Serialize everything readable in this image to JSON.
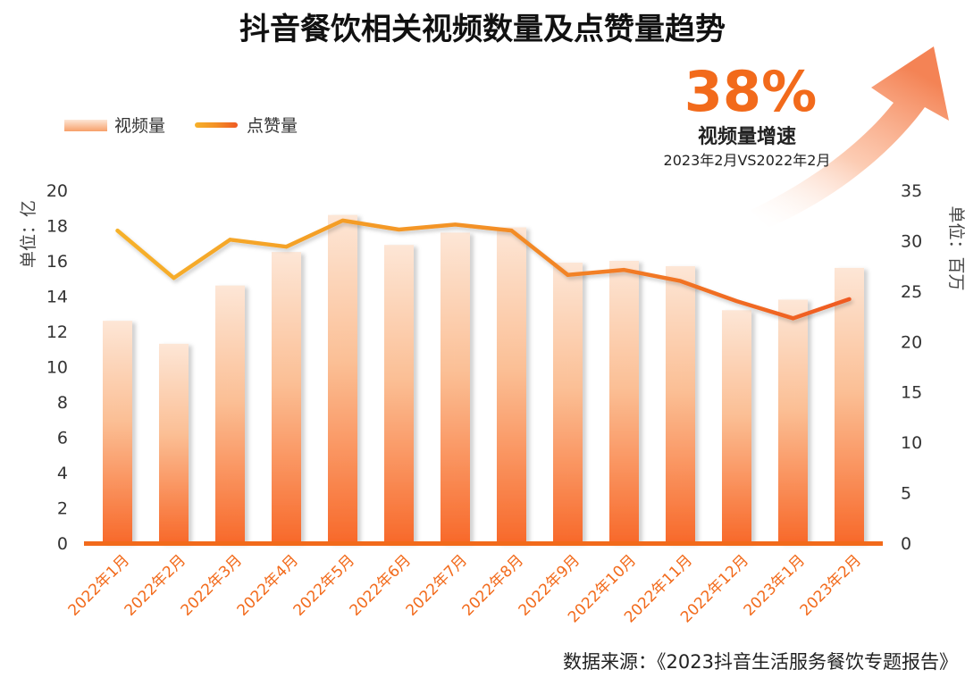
{
  "chart_data": {
    "type": "bar+line",
    "title": "抖音餐饮相关视频数量及点赞量趋势",
    "categories": [
      "2022年1月",
      "2022年2月",
      "2022年3月",
      "2022年4月",
      "2022年5月",
      "2022年6月",
      "2022年7月",
      "2022年8月",
      "2022年9月",
      "2022年10月",
      "2022年11月",
      "2022年12月",
      "2023年1月",
      "2023年2月"
    ],
    "series": [
      {
        "name": "视频量",
        "type": "bar",
        "axis": "left",
        "values": [
          12.6,
          11.3,
          14.6,
          16.5,
          18.6,
          16.9,
          17.6,
          17.9,
          15.9,
          16.0,
          15.7,
          13.2,
          13.8,
          15.6
        ]
      },
      {
        "name": "点赞量",
        "type": "line",
        "axis": "right",
        "values": [
          31.0,
          26.3,
          30.1,
          29.4,
          32.0,
          31.1,
          31.6,
          31.0,
          26.6,
          27.1,
          26.0,
          24.0,
          22.3,
          24.2
        ]
      }
    ],
    "y_left": {
      "label": "单位：亿",
      "range": [
        0,
        20
      ],
      "ticks": [
        0,
        2,
        4,
        6,
        8,
        10,
        12,
        14,
        16,
        18,
        20
      ]
    },
    "y_right": {
      "label": "单位：百万",
      "range": [
        0,
        35
      ],
      "ticks": [
        0,
        5,
        10,
        15,
        20,
        25,
        30,
        35
      ]
    },
    "legend": {
      "position": "top-left",
      "items": [
        "视频量",
        "点赞量"
      ]
    },
    "grid": false
  },
  "callout": {
    "value": "38%",
    "label": "视频量增速",
    "note": "2023年2月VS2022年2月"
  },
  "source": "数据来源：《2023抖音生活服务餐饮专题报告》",
  "colors": {
    "accent": "#f26a1b",
    "bar_top": "#fde3cf",
    "bar_bottom": "#f8692a",
    "line_start": "#f6b12a",
    "line_end": "#ef5a23"
  }
}
